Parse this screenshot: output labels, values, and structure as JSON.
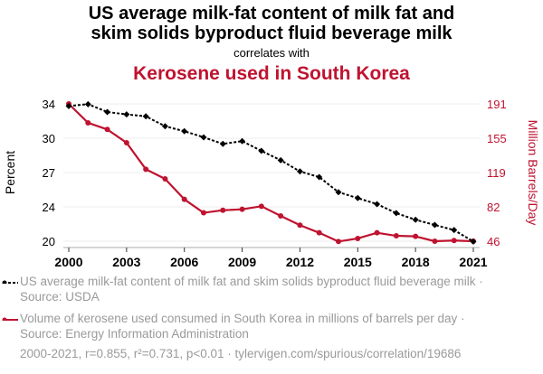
{
  "header": {
    "title_line1": "US average milk-fat content of milk fat and",
    "title_line2": "skim solids byproduct fluid beverage milk",
    "correlates": "correlates with",
    "subtitle": "Kerosene used in South Korea"
  },
  "colors": {
    "series1": "#000000",
    "series2": "#bf1330",
    "legend_text": "#9a9a9a",
    "grid": "#eeeeee"
  },
  "legend": {
    "items": [
      {
        "label": "US average milk-fat content of milk fat and skim solids byproduct fluid beverage milk · Source: USDA",
        "icon": "dotted-line-diamond-icon"
      },
      {
        "label": "Volume of kerosene used consumed in South Korea in millions of barrels per day · Source: Energy Information Administration",
        "icon": "solid-line-dot-icon"
      }
    ]
  },
  "footer": "2000-2021, r=0.855, r²=0.731, p<0.01 · tylervigen.com/spurious/correlation/19686",
  "chart_data": {
    "type": "line",
    "title": "US average milk-fat content of milk fat and skim solids byproduct fluid beverage milk correlates with Kerosene used in South Korea",
    "x": [
      2000,
      2001,
      2002,
      2003,
      2004,
      2005,
      2006,
      2007,
      2008,
      2009,
      2010,
      2011,
      2012,
      2013,
      2014,
      2015,
      2016,
      2017,
      2018,
      2019,
      2020,
      2021
    ],
    "xticks": [
      "2000",
      "2003",
      "2006",
      "2009",
      "2012",
      "2015",
      "2018",
      "2021"
    ],
    "xtick_values": [
      2000,
      2003,
      2006,
      2009,
      2012,
      2015,
      2018,
      2021
    ],
    "xlim": [
      2000,
      2021
    ],
    "series": [
      {
        "name": "US average milk-fat content of milk fat and skim solids byproduct fluid beverage milk",
        "axis": "left",
        "style": "dotted-diamond",
        "values": [
          33.69,
          33.87,
          33.09,
          32.85,
          32.66,
          31.67,
          31.17,
          30.57,
          29.91,
          30.18,
          29.21,
          28.28,
          27.16,
          26.6,
          25.09,
          24.5,
          23.9,
          23.0,
          22.34,
          21.82,
          21.31,
          20.17
        ]
      },
      {
        "name": "Volume of kerosene used consumed in South Korea",
        "axis": "right",
        "style": "solid-dot",
        "values": [
          191,
          171,
          164,
          150,
          122,
          111.8,
          90.2,
          76,
          78.7,
          79.7,
          82.9,
          72.7,
          62.9,
          54.9,
          45.7,
          48.9,
          54.9,
          51.7,
          51.1,
          46,
          46.7,
          46
        ]
      }
    ],
    "left_axis": {
      "label": "Percent",
      "ylim": [
        20.2,
        33.9
      ],
      "tick_labels": [
        "34",
        "30",
        "27",
        "24",
        "20"
      ],
      "tick_values": [
        33.9,
        30.475,
        27.05,
        23.625,
        20.2
      ]
    },
    "right_axis": {
      "label": "Million Barrels/Day",
      "ylim": [
        46,
        191
      ],
      "tick_labels": [
        "191",
        "155",
        "119",
        "82",
        "46"
      ],
      "tick_values": [
        191,
        154.75,
        118.5,
        82.25,
        46
      ]
    },
    "grid": true,
    "legend_position": "bottom"
  }
}
